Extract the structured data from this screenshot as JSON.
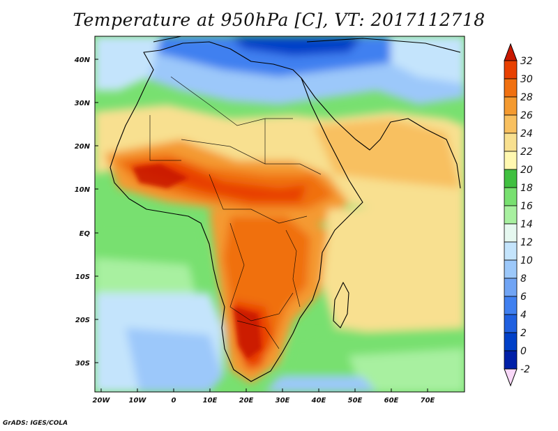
{
  "title": "Temperature at 950hPa [C], VT: 2017112718",
  "credit": "GrADS: IGES/COLA",
  "axes": {
    "lon_ticks": [
      "20W",
      "10W",
      "0",
      "10E",
      "20E",
      "30E",
      "40E",
      "50E",
      "60E",
      "70E"
    ],
    "lat_ticks": [
      "40N",
      "30N",
      "20N",
      "10N",
      "EQ",
      "10S",
      "20S",
      "30S"
    ]
  },
  "colorbar": {
    "levels": [
      "-2",
      "0",
      "2",
      "4",
      "6",
      "8",
      "10",
      "12",
      "14",
      "16",
      "18",
      "20",
      "22",
      "24",
      "26",
      "28",
      "30",
      "32"
    ],
    "colors": [
      "#000080",
      "#0020a8",
      "#0040c8",
      "#2060e0",
      "#4080f0",
      "#70a4f4",
      "#9cc8fa",
      "#c4e4fc",
      "#e6f8f0",
      "#a8f0a0",
      "#78e070",
      "#40c040",
      "#fff8b0",
      "#f8e090",
      "#f8c060",
      "#f49a30",
      "#f07010",
      "#e84000",
      "#c81800",
      "#f8d8f8"
    ]
  }
}
